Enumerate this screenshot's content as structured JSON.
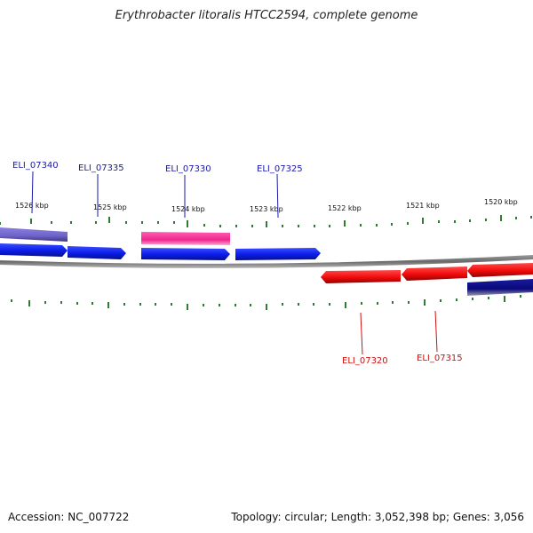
{
  "title": "Erythrobacter litoralis HTCC2594, complete genome",
  "footer": {
    "accession": "Accession: NC_007722",
    "topology": "Topology: circular; Length: 3,052,398 bp; Genes: 3,056"
  },
  "colors": {
    "forward_gene": "#0a1de8",
    "reverse_gene": "#f20a0a",
    "other_gene_pink": "#f0258f",
    "other_gene_lavender": "#6e63c8",
    "other_gene_navy": "#0a0a7a",
    "backbone": "#7a7a7a",
    "tick": "#2e7d32",
    "fwd_label": "#1a1aa6",
    "rev_label": "#cc1111"
  },
  "kbp_labels": [
    "1526 kbp",
    "1525 kbp",
    "1524 kbp",
    "1523 kbp",
    "1522 kbp",
    "1521 kbp",
    "1520 kbp"
  ],
  "gene_labels": [
    {
      "id": "ELI_07340",
      "strand": "forward"
    },
    {
      "id": "ELI_07335",
      "strand": "forward"
    },
    {
      "id": "ELI_07330",
      "strand": "forward"
    },
    {
      "id": "ELI_07325",
      "strand": "forward"
    },
    {
      "id": "ELI_07320",
      "strand": "reverse"
    },
    {
      "id": "ELI_07315",
      "strand": "reverse"
    }
  ]
}
